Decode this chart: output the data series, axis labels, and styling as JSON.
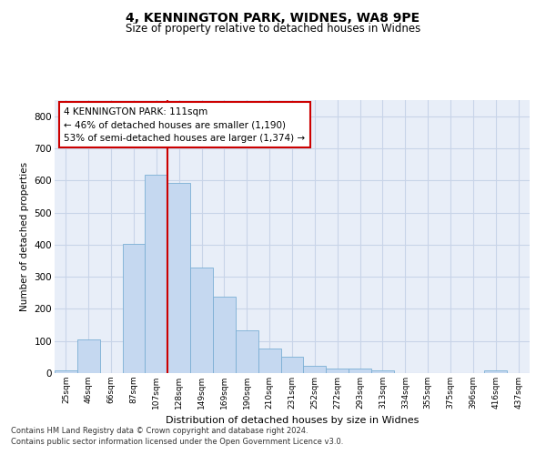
{
  "title1": "4, KENNINGTON PARK, WIDNES, WA8 9PE",
  "title2": "Size of property relative to detached houses in Widnes",
  "xlabel": "Distribution of detached houses by size in Widnes",
  "ylabel": "Number of detached properties",
  "categories": [
    "25sqm",
    "46sqm",
    "66sqm",
    "87sqm",
    "107sqm",
    "128sqm",
    "149sqm",
    "169sqm",
    "190sqm",
    "210sqm",
    "231sqm",
    "252sqm",
    "272sqm",
    "293sqm",
    "313sqm",
    "334sqm",
    "355sqm",
    "375sqm",
    "396sqm",
    "416sqm",
    "437sqm"
  ],
  "values": [
    8,
    105,
    0,
    402,
    617,
    592,
    330,
    238,
    133,
    77,
    50,
    22,
    15,
    15,
    9,
    0,
    0,
    0,
    0,
    8,
    0
  ],
  "bar_color": "#c5d8f0",
  "bar_edge_color": "#7bafd4",
  "bar_width": 1.0,
  "grid_color": "#c8d4e8",
  "bg_color": "#e8eef8",
  "vline_color": "#cc0000",
  "vline_x": 4.5,
  "annotation_text": "4 KENNINGTON PARK: 111sqm\n← 46% of detached houses are smaller (1,190)\n53% of semi-detached houses are larger (1,374) →",
  "annotation_box_color": "#cc0000",
  "ylim": [
    0,
    850
  ],
  "yticks": [
    0,
    100,
    200,
    300,
    400,
    500,
    600,
    700,
    800
  ],
  "footer1": "Contains HM Land Registry data © Crown copyright and database right 2024.",
  "footer2": "Contains public sector information licensed under the Open Government Licence v3.0."
}
